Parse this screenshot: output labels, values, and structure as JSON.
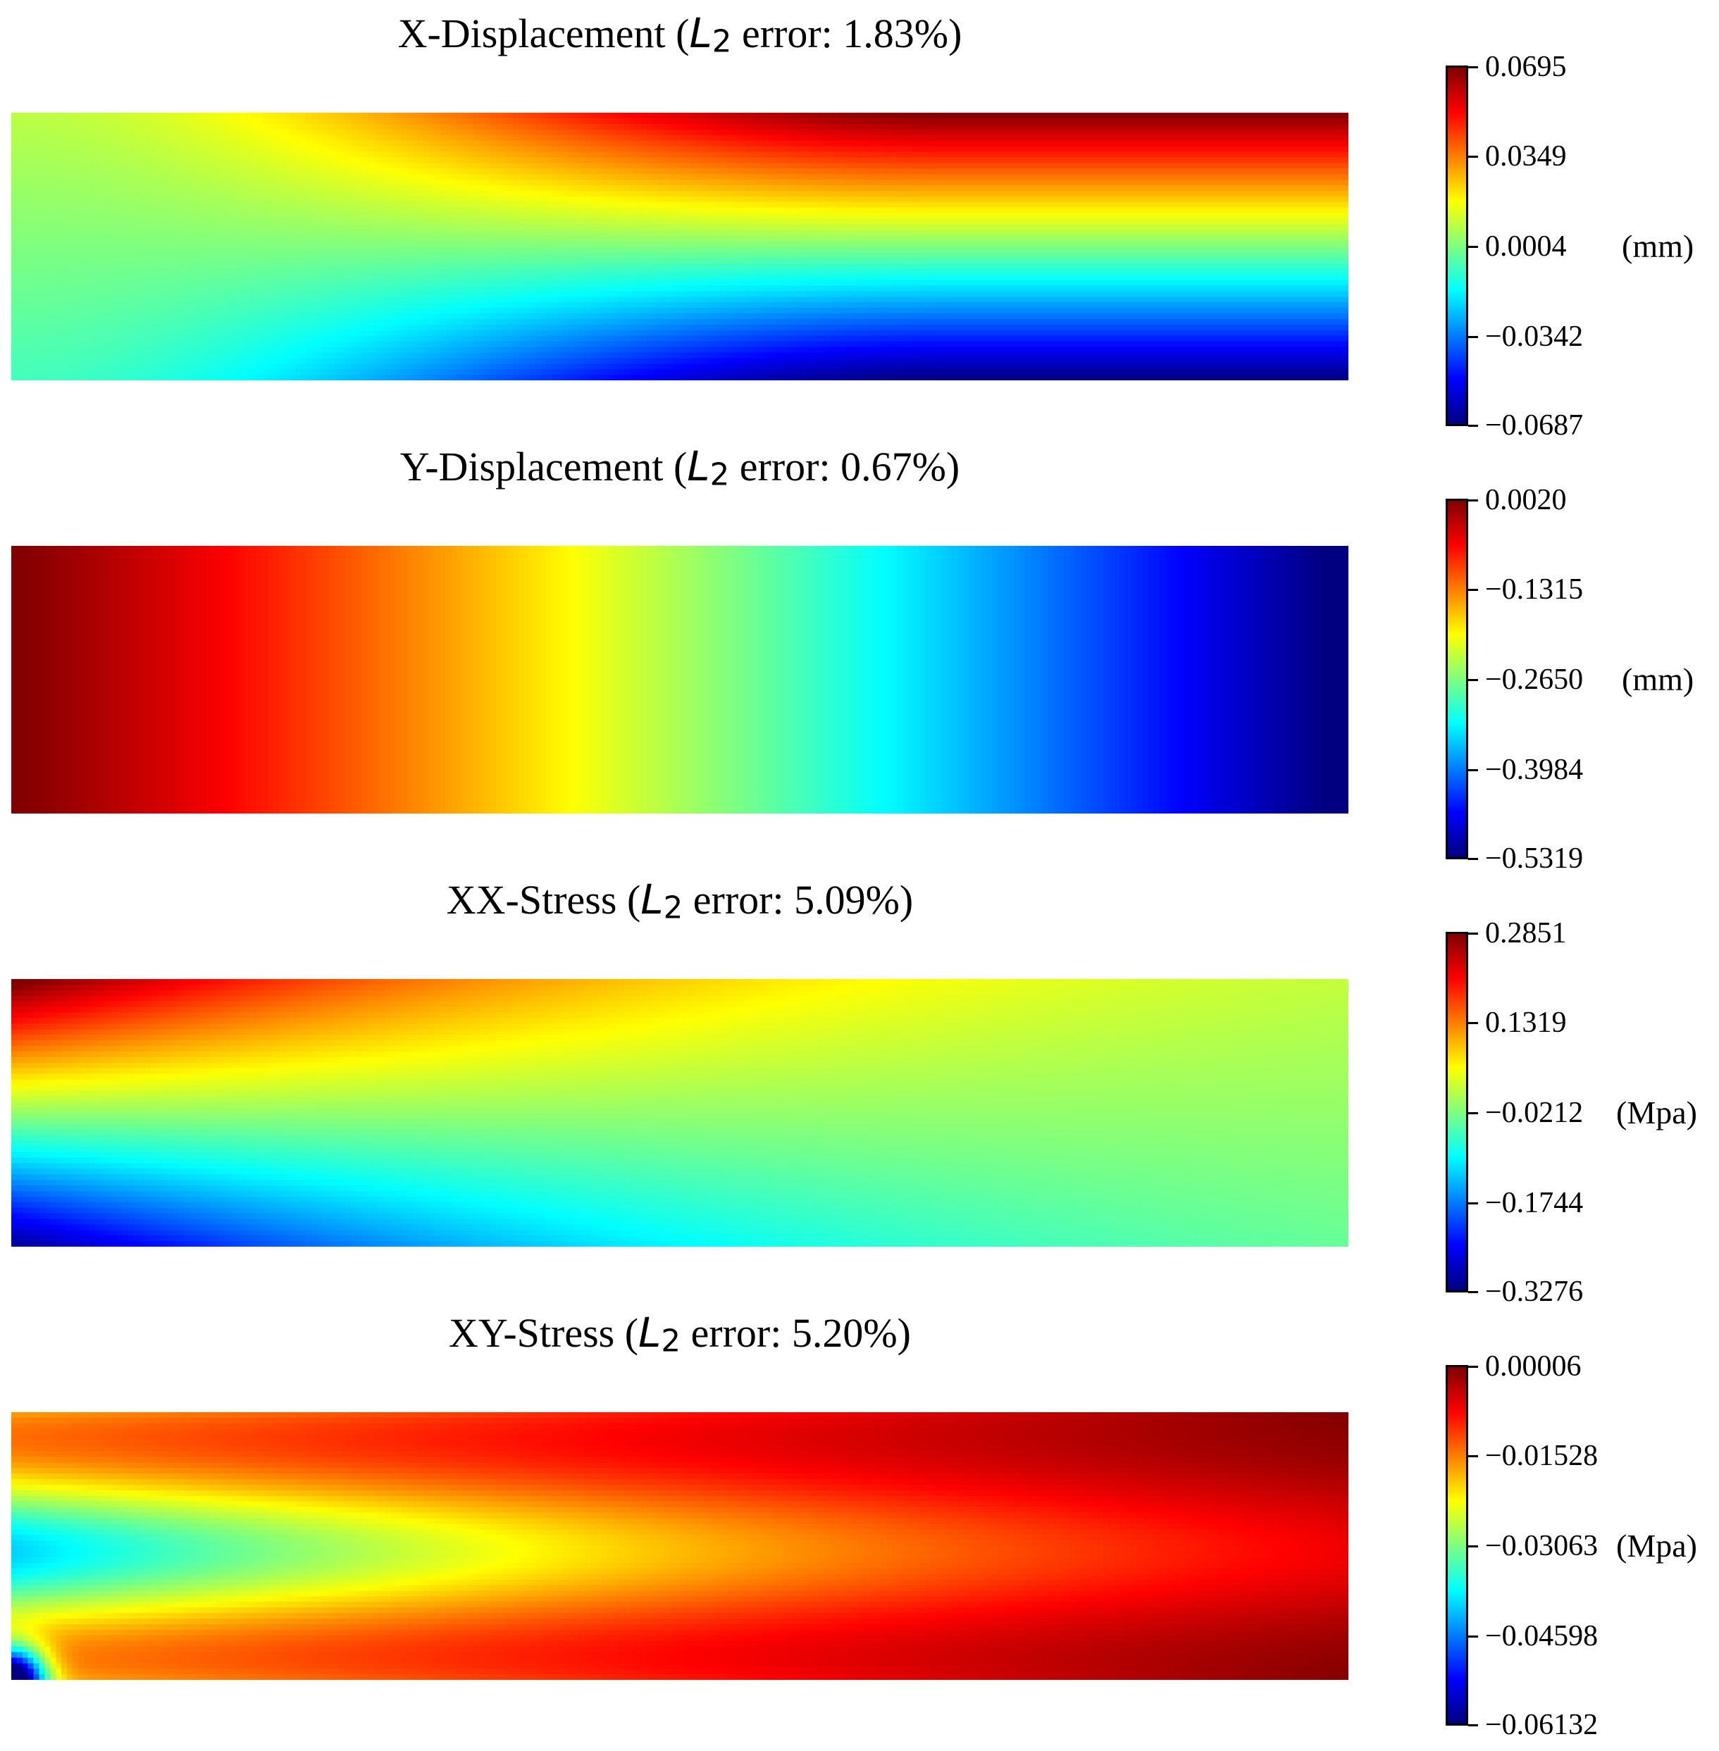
{
  "chart_data": [
    {
      "type": "heatmap",
      "field": "x_displacement",
      "title_prefix": "X-Displacement (",
      "error_symbol": "L",
      "error_subscript": "2",
      "title_suffix": " error: 1.83%)",
      "l2_error_percent": 1.83,
      "colormap": "jet",
      "unit": "(mm)",
      "colorbar_ticks": [
        "0.0695",
        "0.0349",
        "0.0004",
        "−0.0342",
        "−0.0687"
      ],
      "vmin": -0.0687,
      "vmax": 0.0695
    },
    {
      "type": "heatmap",
      "field": "y_displacement",
      "title_prefix": "Y-Displacement (",
      "error_symbol": "L",
      "error_subscript": "2",
      "title_suffix": " error: 0.67%)",
      "l2_error_percent": 0.67,
      "colormap": "jet",
      "unit": "(mm)",
      "colorbar_ticks": [
        "0.0020",
        "−0.1315",
        "−0.2650",
        "−0.3984",
        "−0.5319"
      ],
      "vmin": -0.5319,
      "vmax": 0.002
    },
    {
      "type": "heatmap",
      "field": "xx_stress",
      "title_prefix": "XX-Stress (",
      "error_symbol": "L",
      "error_subscript": "2",
      "title_suffix": " error: 5.09%)",
      "l2_error_percent": 5.09,
      "colormap": "jet",
      "unit": "(Mpa)",
      "colorbar_ticks": [
        "0.2851",
        "0.1319",
        "−0.0212",
        "−0.1744",
        "−0.3276"
      ],
      "vmin": -0.3276,
      "vmax": 0.2851
    },
    {
      "type": "heatmap",
      "field": "xy_stress",
      "title_prefix": "XY-Stress (",
      "error_symbol": "L",
      "error_subscript": "2",
      "title_suffix": " error: 5.20%)",
      "l2_error_percent": 5.2,
      "colormap": "jet",
      "unit": "(Mpa)",
      "colorbar_ticks": [
        "0.00006",
        "−0.01528",
        "−0.03063",
        "−0.04598",
        "−0.06132"
      ],
      "vmin": -0.06132,
      "vmax": 6e-05
    }
  ]
}
